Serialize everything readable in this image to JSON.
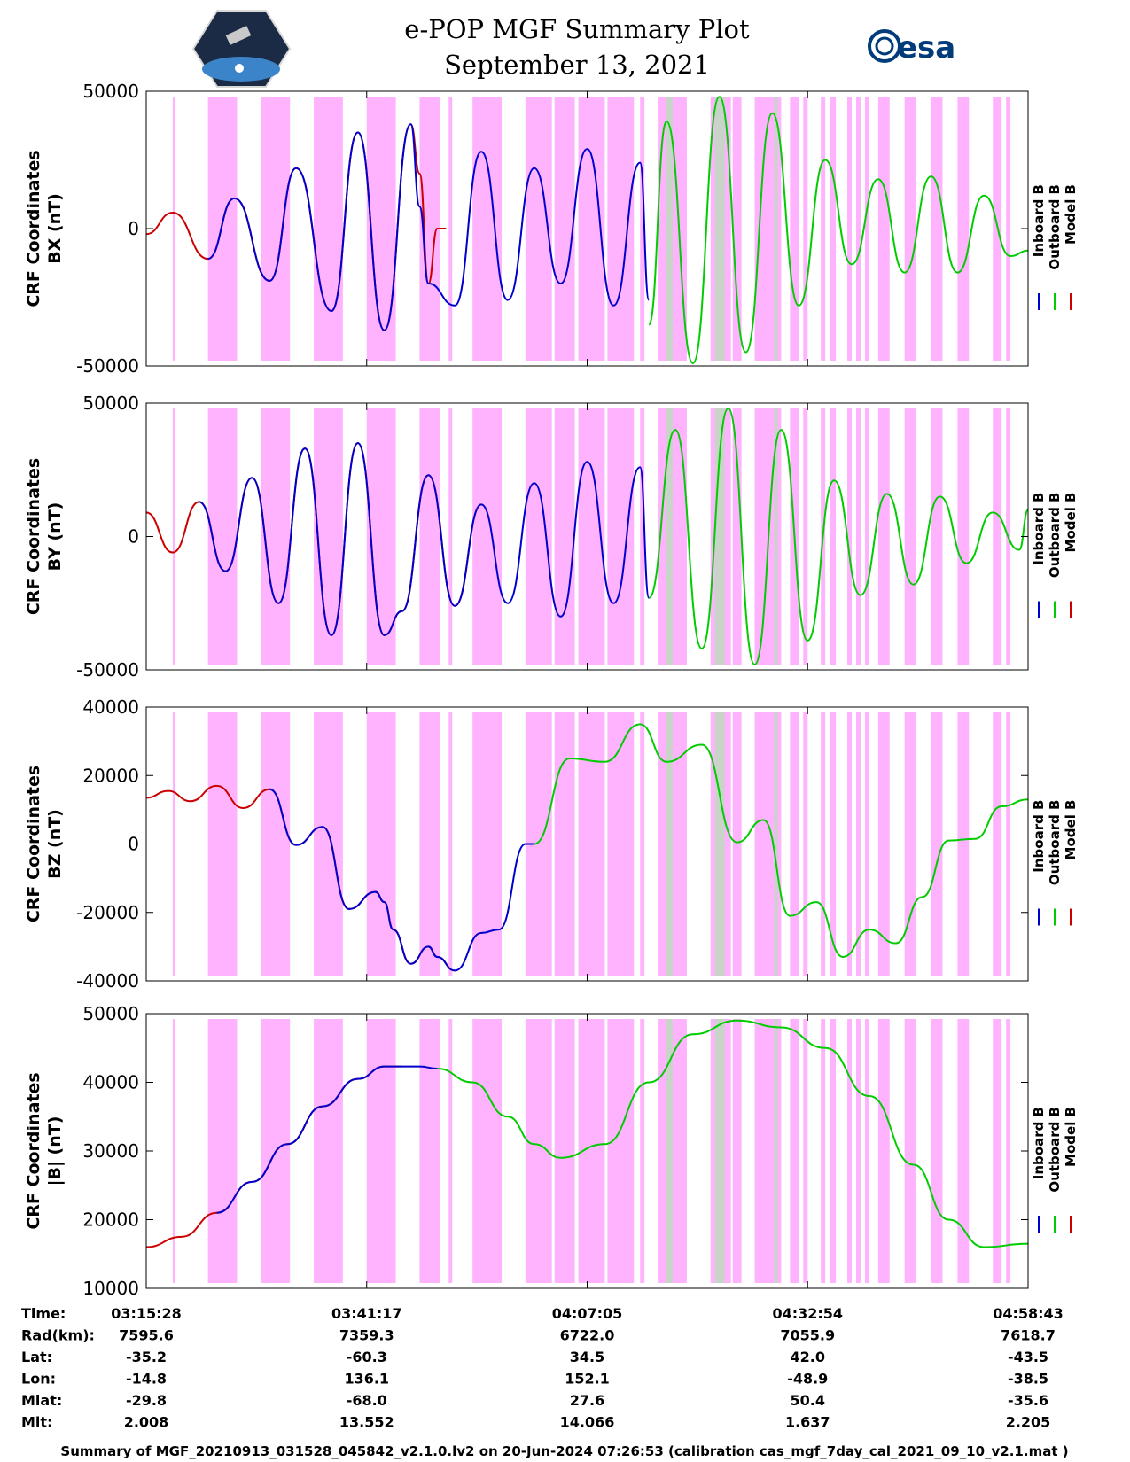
{
  "header": {
    "title": "e-POP MGF Summary Plot",
    "date": "September 13, 2021",
    "left_logo": "cassiope-satellite-logo",
    "right_logo_text": "esa"
  },
  "colors": {
    "inboard": "#0000cc",
    "outboard": "#00cc00",
    "model": "#cc0000",
    "eclipse": "#ffb3ff",
    "gray_band": "#c8d4c8"
  },
  "legend": {
    "inboard": "Inboard B",
    "outboard": "Outboard B",
    "model": "Model B"
  },
  "footer": "Summary of MGF_20210913_031528_045842_v2.1.0.lv2 on 20-Jun-2024 07:26:53 (calibration cas_mgf_7day_cal_2021_09_10_v2.1.mat )",
  "table": {
    "rows": [
      {
        "label": "Time:",
        "values": [
          "03:15:28",
          "03:41:17",
          "04:07:05",
          "04:32:54",
          "04:58:43"
        ]
      },
      {
        "label": "Rad(km):",
        "values": [
          "7595.6",
          "7359.3",
          "6722.0",
          "7055.9",
          "7618.7"
        ]
      },
      {
        "label": "Lat:",
        "values": [
          "-35.2",
          "-60.3",
          "34.5",
          "42.0",
          "-43.5"
        ]
      },
      {
        "label": "Lon:",
        "values": [
          "-14.8",
          "136.1",
          "152.1",
          "-48.9",
          "-38.5"
        ]
      },
      {
        "label": "Mlat:",
        "values": [
          "-29.8",
          "-68.0",
          "27.6",
          "50.4",
          "-35.6"
        ]
      },
      {
        "label": "Mlt:",
        "values": [
          "2.008",
          "13.552",
          "14.066",
          "1.637",
          "2.205"
        ]
      }
    ]
  },
  "chart_data": [
    {
      "type": "line",
      "title": "BX",
      "ylabel": [
        "CRF Coordinates",
        "BX (nT)"
      ],
      "ylim": [
        -50000,
        50000
      ],
      "yticks": [
        -50000,
        0,
        50000
      ],
      "xlim": [
        0,
        100
      ],
      "series": [
        {
          "name": "Model B",
          "color": "model",
          "x": [
            0,
            3,
            7,
            10,
            14,
            17,
            21,
            24,
            27,
            30,
            31,
            32,
            33,
            34
          ],
          "y": [
            -2000,
            5800,
            -11000,
            11000,
            -19000,
            22000,
            -30000,
            35000,
            -37000,
            38000,
            20000,
            -20000,
            0,
            0
          ]
        },
        {
          "name": "Inboard B",
          "color": "inboard",
          "x": [
            7,
            10,
            14,
            17,
            21,
            24,
            27,
            30,
            31,
            32,
            35,
            38,
            41,
            44,
            47,
            50,
            53,
            56,
            57
          ],
          "y": [
            -11000,
            11000,
            -19000,
            22000,
            -30000,
            35000,
            -37000,
            38000,
            8000,
            -20000,
            -28000,
            28000,
            -26000,
            22000,
            -20000,
            29000,
            -28000,
            24000,
            -26000
          ]
        },
        {
          "name": "Outboard B",
          "color": "outboard",
          "x": [
            57,
            59,
            62,
            65,
            68,
            71,
            74,
            77,
            80,
            83,
            86,
            89,
            92,
            95,
            98,
            100
          ],
          "y": [
            -35000,
            39000,
            -49000,
            48000,
            -45000,
            42000,
            -28000,
            25000,
            -13000,
            18000,
            -16000,
            19000,
            -16000,
            12000,
            -10000,
            -8000
          ]
        }
      ]
    },
    {
      "type": "line",
      "title": "BY",
      "ylabel": [
        "CRF Coordinates",
        "BY (nT)"
      ],
      "ylim": [
        -50000,
        50000
      ],
      "yticks": [
        -50000,
        0,
        50000
      ],
      "xlim": [
        0,
        100
      ],
      "series": [
        {
          "name": "Model B",
          "color": "model",
          "x": [
            0,
            3,
            6,
            9,
            12,
            15,
            18,
            21,
            24,
            27,
            29,
            32,
            35,
            38
          ],
          "y": [
            9000,
            -6000,
            13000,
            -13000,
            22000,
            -25000,
            33000,
            -37000,
            35000,
            -37000,
            -28000,
            23000,
            -26000,
            12000
          ]
        },
        {
          "name": "Inboard B",
          "color": "inboard",
          "x": [
            6,
            9,
            12,
            15,
            18,
            21,
            24,
            27,
            29,
            32,
            35,
            38,
            41,
            44,
            47,
            50,
            53,
            56,
            57
          ],
          "y": [
            13000,
            -13000,
            22000,
            -25000,
            33000,
            -37000,
            35000,
            -37000,
            -28000,
            23000,
            -26000,
            12000,
            -25000,
            20000,
            -30000,
            28000,
            -25000,
            26000,
            -23000
          ]
        },
        {
          "name": "Outboard B",
          "color": "outboard",
          "x": [
            57,
            60,
            63,
            66,
            69,
            72,
            75,
            78,
            81,
            84,
            87,
            90,
            93,
            96,
            99,
            100
          ],
          "y": [
            -23000,
            40000,
            -42000,
            48000,
            -48000,
            40000,
            -39000,
            21000,
            -22000,
            16000,
            -18000,
            15000,
            -10000,
            9000,
            -5000,
            10000
          ]
        }
      ]
    },
    {
      "type": "line",
      "title": "BZ",
      "ylabel": [
        "CRF Coordinates",
        "BZ (nT)"
      ],
      "ylim": [
        -40000,
        40000
      ],
      "yticks": [
        -40000,
        -20000,
        0,
        20000,
        40000
      ],
      "xlim": [
        0,
        100
      ],
      "series": [
        {
          "name": "Model B",
          "color": "model",
          "x": [
            0,
            2.5,
            5,
            8,
            11,
            14,
            17,
            20,
            23,
            26,
            27,
            28,
            30,
            32,
            33,
            35
          ],
          "y": [
            13500,
            15500,
            12500,
            17000,
            10500,
            16000,
            -300,
            5000,
            -19000,
            -14000,
            -17000,
            -25000,
            -35000,
            -30000,
            -33000,
            -37000
          ]
        },
        {
          "name": "Inboard B",
          "color": "inboard",
          "x": [
            14,
            17,
            20,
            23,
            26,
            27,
            28,
            30,
            32,
            33,
            35,
            38,
            40,
            43,
            44
          ],
          "y": [
            16000,
            -300,
            5000,
            -19000,
            -14000,
            -17000,
            -25000,
            -35000,
            -30000,
            -33000,
            -37000,
            -26000,
            -25000,
            0,
            0
          ]
        },
        {
          "name": "Outboard B",
          "color": "outboard",
          "x": [
            44,
            48,
            52,
            56,
            59,
            63,
            67,
            70,
            73,
            76,
            79,
            82,
            85,
            88,
            91,
            94,
            97,
            100
          ],
          "y": [
            0,
            25000,
            24000,
            35000,
            24000,
            29000,
            500,
            7000,
            -21000,
            -17000,
            -33000,
            -25000,
            -29000,
            -15500,
            1000,
            1500,
            11000,
            13000
          ]
        }
      ]
    },
    {
      "type": "line",
      "title": "|B|",
      "ylabel": [
        "CRF Coordinates",
        "|B| (nT)"
      ],
      "ylim": [
        10000,
        50000
      ],
      "yticks": [
        10000,
        20000,
        30000,
        40000,
        50000
      ],
      "xlim": [
        0,
        100
      ],
      "series": [
        {
          "name": "Model B",
          "color": "model",
          "x": [
            0,
            4,
            8,
            12,
            16,
            20,
            24,
            27,
            29
          ],
          "y": [
            16000,
            17500,
            21000,
            25500,
            31000,
            36500,
            40500,
            42300,
            42300
          ]
        },
        {
          "name": "Inboard B",
          "color": "inboard",
          "x": [
            8,
            12,
            16,
            20,
            24,
            27,
            29,
            31,
            33
          ],
          "y": [
            21000,
            25500,
            31000,
            36500,
            40500,
            42300,
            42300,
            42300,
            42000
          ]
        },
        {
          "name": "Outboard B",
          "color": "outboard",
          "x": [
            33,
            37,
            41,
            44,
            47,
            52,
            57,
            62,
            67,
            72,
            77,
            82,
            87,
            91,
            95,
            100
          ],
          "y": [
            42000,
            40000,
            35000,
            31000,
            29000,
            31000,
            40000,
            47000,
            49000,
            48000,
            45000,
            38000,
            28000,
            20000,
            16000,
            16500
          ]
        }
      ]
    }
  ],
  "x_time_ticks": [
    {
      "pos": 0,
      "label": "03:15:28"
    },
    {
      "pos": 25,
      "label": "03:41:17"
    },
    {
      "pos": 50,
      "label": "04:07:05"
    },
    {
      "pos": 75,
      "label": "04:32:54"
    },
    {
      "pos": 100,
      "label": "04:58:43"
    }
  ],
  "eclipse_bands": [
    [
      3,
      3.3
    ],
    [
      7,
      10.3
    ],
    [
      13,
      16.3
    ],
    [
      19,
      22.3
    ],
    [
      25,
      28.3
    ],
    [
      31,
      33.3
    ],
    [
      34.3,
      34.7
    ],
    [
      37,
      40.3
    ],
    [
      43,
      46
    ],
    [
      46.3,
      48.6
    ],
    [
      49,
      52
    ],
    [
      52.3,
      55.3
    ],
    [
      56,
      56.5
    ],
    [
      58,
      61.3
    ],
    [
      64,
      66.3
    ],
    [
      66.5,
      67.5
    ],
    [
      69,
      71.3
    ],
    [
      71.5,
      72
    ],
    [
      73,
      74
    ],
    [
      74.5,
      75
    ],
    [
      76.5,
      77
    ],
    [
      77.5,
      78.2
    ],
    [
      79.5,
      80
    ],
    [
      80.5,
      81
    ],
    [
      81.5,
      82
    ],
    [
      83,
      84.3
    ],
    [
      86,
      87.3
    ],
    [
      89,
      90.3
    ],
    [
      92,
      93.3
    ],
    [
      96,
      97
    ],
    [
      97.5,
      98
    ]
  ],
  "gray_bands": [
    [
      59,
      59.7
    ],
    [
      64.5,
      65.6
    ],
    [
      71.2,
      71.6
    ]
  ]
}
